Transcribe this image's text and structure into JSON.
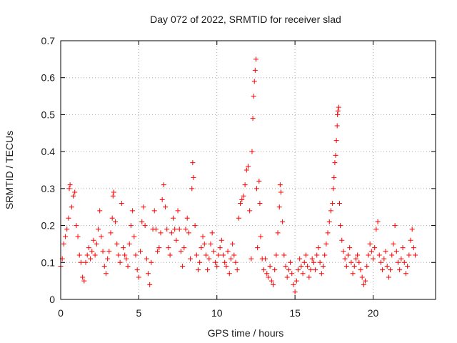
{
  "chart_data": {
    "type": "scatter",
    "title": "Day 072 of 2022, SRMTID for receiver slad",
    "xlabel": "GPS time / hours",
    "ylabel": "SRMTID / TECUs",
    "xlim": [
      0,
      24
    ],
    "ylim": [
      0,
      0.7
    ],
    "xticks": [
      0,
      5,
      10,
      15,
      20
    ],
    "xtick_labels": [
      "0",
      "5",
      "10",
      "15",
      "20"
    ],
    "yticks": [
      0,
      0.1,
      0.2,
      0.3,
      0.4,
      0.5,
      0.6,
      0.7
    ],
    "ytick_labels": [
      "0",
      "0.1",
      "0.2",
      "0.3",
      "0.4",
      "0.5",
      "0.6",
      "0.7"
    ],
    "grid": true,
    "marker": "plus",
    "series": [
      {
        "name": "SRMTID",
        "color": "#ff0000",
        "points": [
          [
            0.0,
            0.09
          ],
          [
            0.1,
            0.11
          ],
          [
            0.2,
            0.15
          ],
          [
            0.3,
            0.17
          ],
          [
            0.4,
            0.19
          ],
          [
            0.5,
            0.22
          ],
          [
            0.55,
            0.3
          ],
          [
            0.6,
            0.31
          ],
          [
            0.7,
            0.25
          ],
          [
            0.8,
            0.28
          ],
          [
            0.9,
            0.29
          ],
          [
            1.0,
            0.2
          ],
          [
            1.1,
            0.17
          ],
          [
            1.2,
            0.12
          ],
          [
            1.3,
            0.1
          ],
          [
            1.4,
            0.06
          ],
          [
            1.5,
            0.05
          ],
          [
            1.6,
            0.1
          ],
          [
            1.7,
            0.12
          ],
          [
            1.8,
            0.14
          ],
          [
            1.9,
            0.11
          ],
          [
            2.0,
            0.13
          ],
          [
            2.1,
            0.16
          ],
          [
            2.2,
            0.12
          ],
          [
            2.3,
            0.15
          ],
          [
            2.4,
            0.19
          ],
          [
            2.5,
            0.24
          ],
          [
            2.6,
            0.17
          ],
          [
            2.7,
            0.13
          ],
          [
            2.8,
            0.09
          ],
          [
            2.9,
            0.07
          ],
          [
            3.0,
            0.11
          ],
          [
            3.1,
            0.13
          ],
          [
            3.2,
            0.18
          ],
          [
            3.3,
            0.22
          ],
          [
            3.35,
            0.28
          ],
          [
            3.4,
            0.29
          ],
          [
            3.5,
            0.21
          ],
          [
            3.6,
            0.15
          ],
          [
            3.7,
            0.12
          ],
          [
            3.8,
            0.1
          ],
          [
            3.9,
            0.26
          ],
          [
            4.0,
            0.14
          ],
          [
            4.1,
            0.12
          ],
          [
            4.2,
            0.11
          ],
          [
            4.3,
            0.09
          ],
          [
            4.4,
            0.15
          ],
          [
            4.5,
            0.2
          ],
          [
            4.6,
            0.24
          ],
          [
            4.7,
            0.17
          ],
          [
            4.8,
            0.12
          ],
          [
            4.9,
            0.08
          ],
          [
            5.0,
            0.06
          ],
          [
            5.1,
            0.13
          ],
          [
            5.2,
            0.21
          ],
          [
            5.3,
            0.25
          ],
          [
            5.4,
            0.2
          ],
          [
            5.5,
            0.11
          ],
          [
            5.6,
            0.07
          ],
          [
            5.7,
            0.04
          ],
          [
            5.8,
            0.1
          ],
          [
            5.9,
            0.19
          ],
          [
            6.0,
            0.24
          ],
          [
            6.1,
            0.19
          ],
          [
            6.2,
            0.13
          ],
          [
            6.3,
            0.14
          ],
          [
            6.4,
            0.18
          ],
          [
            6.5,
            0.27
          ],
          [
            6.6,
            0.31
          ],
          [
            6.7,
            0.25
          ],
          [
            6.8,
            0.19
          ],
          [
            6.9,
            0.14
          ],
          [
            7.0,
            0.12
          ],
          [
            7.1,
            0.18
          ],
          [
            7.2,
            0.22
          ],
          [
            7.3,
            0.19
          ],
          [
            7.4,
            0.16
          ],
          [
            7.5,
            0.24
          ],
          [
            7.6,
            0.19
          ],
          [
            7.7,
            0.13
          ],
          [
            7.8,
            0.09
          ],
          [
            7.9,
            0.14
          ],
          [
            8.0,
            0.19
          ],
          [
            8.1,
            0.22
          ],
          [
            8.2,
            0.18
          ],
          [
            8.3,
            0.11
          ],
          [
            8.4,
            0.3
          ],
          [
            8.45,
            0.37
          ],
          [
            8.5,
            0.33
          ],
          [
            8.6,
            0.2
          ],
          [
            8.7,
            0.12
          ],
          [
            8.8,
            0.08
          ],
          [
            8.9,
            0.1
          ],
          [
            9.0,
            0.14
          ],
          [
            9.1,
            0.17
          ],
          [
            9.2,
            0.15
          ],
          [
            9.3,
            0.12
          ],
          [
            9.4,
            0.08
          ],
          [
            9.5,
            0.11
          ],
          [
            9.6,
            0.15
          ],
          [
            9.7,
            0.18
          ],
          [
            9.8,
            0.13
          ],
          [
            9.9,
            0.1
          ],
          [
            10.0,
            0.09
          ],
          [
            10.1,
            0.12
          ],
          [
            10.2,
            0.14
          ],
          [
            10.3,
            0.16
          ],
          [
            10.4,
            0.12
          ],
          [
            10.5,
            0.1
          ],
          [
            10.6,
            0.09
          ],
          [
            10.7,
            0.13
          ],
          [
            10.8,
            0.07
          ],
          [
            10.9,
            0.11
          ],
          [
            11.0,
            0.15
          ],
          [
            11.1,
            0.12
          ],
          [
            11.2,
            0.1
          ],
          [
            11.3,
            0.08
          ],
          [
            11.4,
            0.22
          ],
          [
            11.5,
            0.26
          ],
          [
            11.6,
            0.27
          ],
          [
            11.7,
            0.28
          ],
          [
            11.8,
            0.31
          ],
          [
            11.9,
            0.35
          ],
          [
            12.0,
            0.36
          ],
          [
            12.1,
            0.24
          ],
          [
            12.2,
            0.11
          ],
          [
            12.25,
            0.4
          ],
          [
            12.3,
            0.49
          ],
          [
            12.35,
            0.55
          ],
          [
            12.4,
            0.59
          ],
          [
            12.45,
            0.62
          ],
          [
            12.5,
            0.65
          ],
          [
            12.55,
            0.3
          ],
          [
            12.6,
            0.14
          ],
          [
            12.7,
            0.32
          ],
          [
            12.75,
            0.26
          ],
          [
            12.8,
            0.17
          ],
          [
            12.9,
            0.11
          ],
          [
            13.0,
            0.08
          ],
          [
            13.1,
            0.11
          ],
          [
            13.2,
            0.07
          ],
          [
            13.3,
            0.06
          ],
          [
            13.4,
            0.09
          ],
          [
            13.5,
            0.05
          ],
          [
            13.6,
            0.04
          ],
          [
            13.7,
            0.08
          ],
          [
            13.8,
            0.12
          ],
          [
            13.9,
            0.18
          ],
          [
            14.0,
            0.25
          ],
          [
            14.05,
            0.31
          ],
          [
            14.1,
            0.29
          ],
          [
            14.2,
            0.21
          ],
          [
            14.3,
            0.12
          ],
          [
            14.4,
            0.09
          ],
          [
            14.5,
            0.06
          ],
          [
            14.6,
            0.08
          ],
          [
            14.7,
            0.1
          ],
          [
            14.8,
            0.07
          ],
          [
            14.9,
            0.04
          ],
          [
            15.0,
            0.02
          ],
          [
            15.1,
            0.05
          ],
          [
            15.2,
            0.08
          ],
          [
            15.3,
            0.11
          ],
          [
            15.4,
            0.09
          ],
          [
            15.5,
            0.07
          ],
          [
            15.6,
            0.1
          ],
          [
            15.7,
            0.12
          ],
          [
            15.8,
            0.09
          ],
          [
            15.9,
            0.06
          ],
          [
            16.0,
            0.08
          ],
          [
            16.1,
            0.11
          ],
          [
            16.2,
            0.1
          ],
          [
            16.3,
            0.08
          ],
          [
            16.4,
            0.12
          ],
          [
            16.5,
            0.14
          ],
          [
            16.6,
            0.1
          ],
          [
            16.7,
            0.07
          ],
          [
            16.8,
            0.09
          ],
          [
            16.9,
            0.12
          ],
          [
            17.0,
            0.15
          ],
          [
            17.1,
            0.18
          ],
          [
            17.2,
            0.21
          ],
          [
            17.3,
            0.24
          ],
          [
            17.4,
            0.26
          ],
          [
            17.45,
            0.3
          ],
          [
            17.5,
            0.33
          ],
          [
            17.55,
            0.37
          ],
          [
            17.6,
            0.39
          ],
          [
            17.65,
            0.43
          ],
          [
            17.7,
            0.47
          ],
          [
            17.72,
            0.5
          ],
          [
            17.75,
            0.51
          ],
          [
            17.8,
            0.52
          ],
          [
            17.85,
            0.26
          ],
          [
            17.9,
            0.2
          ],
          [
            18.0,
            0.16
          ],
          [
            18.1,
            0.13
          ],
          [
            18.2,
            0.11
          ],
          [
            18.3,
            0.09
          ],
          [
            18.4,
            0.12
          ],
          [
            18.5,
            0.14
          ],
          [
            18.6,
            0.1
          ],
          [
            18.7,
            0.07
          ],
          [
            18.8,
            0.09
          ],
          [
            18.9,
            0.11
          ],
          [
            19.0,
            0.12
          ],
          [
            19.1,
            0.1
          ],
          [
            19.2,
            0.08
          ],
          [
            19.3,
            0.06
          ],
          [
            19.4,
            0.04
          ],
          [
            19.5,
            0.05
          ],
          [
            19.6,
            0.09
          ],
          [
            19.7,
            0.12
          ],
          [
            19.8,
            0.15
          ],
          [
            19.9,
            0.13
          ],
          [
            20.0,
            0.11
          ],
          [
            20.1,
            0.14
          ],
          [
            20.2,
            0.19
          ],
          [
            20.3,
            0.21
          ],
          [
            20.4,
            0.12
          ],
          [
            20.5,
            0.1
          ],
          [
            20.6,
            0.08
          ],
          [
            20.7,
            0.11
          ],
          [
            20.8,
            0.13
          ],
          [
            20.9,
            0.09
          ],
          [
            21.0,
            0.06
          ],
          [
            21.1,
            0.08
          ],
          [
            21.2,
            0.12
          ],
          [
            21.3,
            0.15
          ],
          [
            21.4,
            0.2
          ],
          [
            21.5,
            0.13
          ],
          [
            21.6,
            0.1
          ],
          [
            21.7,
            0.08
          ],
          [
            21.8,
            0.11
          ],
          [
            21.9,
            0.14
          ],
          [
            22.0,
            0.1
          ],
          [
            22.1,
            0.07
          ],
          [
            22.2,
            0.09
          ],
          [
            22.3,
            0.12
          ],
          [
            22.4,
            0.16
          ],
          [
            22.5,
            0.19
          ],
          [
            22.6,
            0.14
          ],
          [
            22.7,
            0.12
          ]
        ]
      }
    ]
  }
}
